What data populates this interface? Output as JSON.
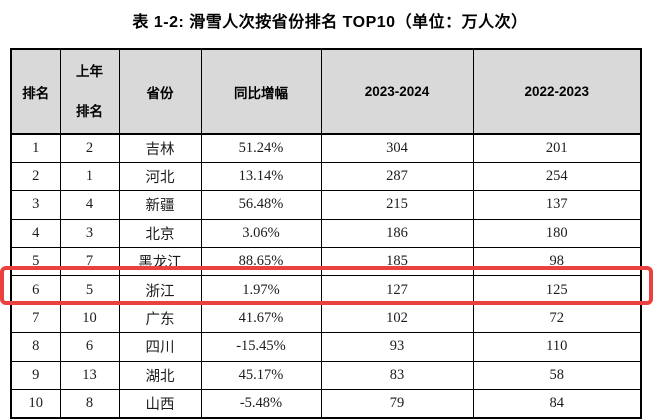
{
  "title": "表 1-2: 滑雪人次按省份排名 TOP10（单位：万人次）",
  "table": {
    "headers": {
      "rank": "排名",
      "prev": "上年\n排名",
      "province": "省份",
      "yoy": "同比增幅",
      "season2324": "2023-2024",
      "season2223": "2022-2023"
    },
    "rows": [
      {
        "rank": "1",
        "prev": "2",
        "province": "吉林",
        "yoy": "51.24%",
        "season2324": "304",
        "season2223": "201"
      },
      {
        "rank": "2",
        "prev": "1",
        "province": "河北",
        "yoy": "13.14%",
        "season2324": "287",
        "season2223": "254"
      },
      {
        "rank": "3",
        "prev": "4",
        "province": "新疆",
        "yoy": "56.48%",
        "season2324": "215",
        "season2223": "137"
      },
      {
        "rank": "4",
        "prev": "3",
        "province": "北京",
        "yoy": "3.06%",
        "season2324": "186",
        "season2223": "180"
      },
      {
        "rank": "5",
        "prev": "7",
        "province": "黑龙江",
        "yoy": "88.65%",
        "season2324": "185",
        "season2223": "98"
      },
      {
        "rank": "6",
        "prev": "5",
        "province": "浙江",
        "yoy": "1.97%",
        "season2324": "127",
        "season2223": "125"
      },
      {
        "rank": "7",
        "prev": "10",
        "province": "广东",
        "yoy": "41.67%",
        "season2324": "102",
        "season2223": "72"
      },
      {
        "rank": "8",
        "prev": "6",
        "province": "四川",
        "yoy": "-15.45%",
        "season2324": "93",
        "season2223": "110"
      },
      {
        "rank": "9",
        "prev": "13",
        "province": "湖北",
        "yoy": "45.17%",
        "season2324": "83",
        "season2223": "58"
      },
      {
        "rank": "10",
        "prev": "8",
        "province": "山西",
        "yoy": "-5.48%",
        "season2324": "79",
        "season2223": "84"
      }
    ],
    "highlight": {
      "row_rank": "6",
      "province": "浙江"
    }
  },
  "colors": {
    "header_bg": "#d9d9d9",
    "highlight_border": "#ea4040",
    "table_border": "#000000",
    "page_bg": "#ffffff"
  }
}
